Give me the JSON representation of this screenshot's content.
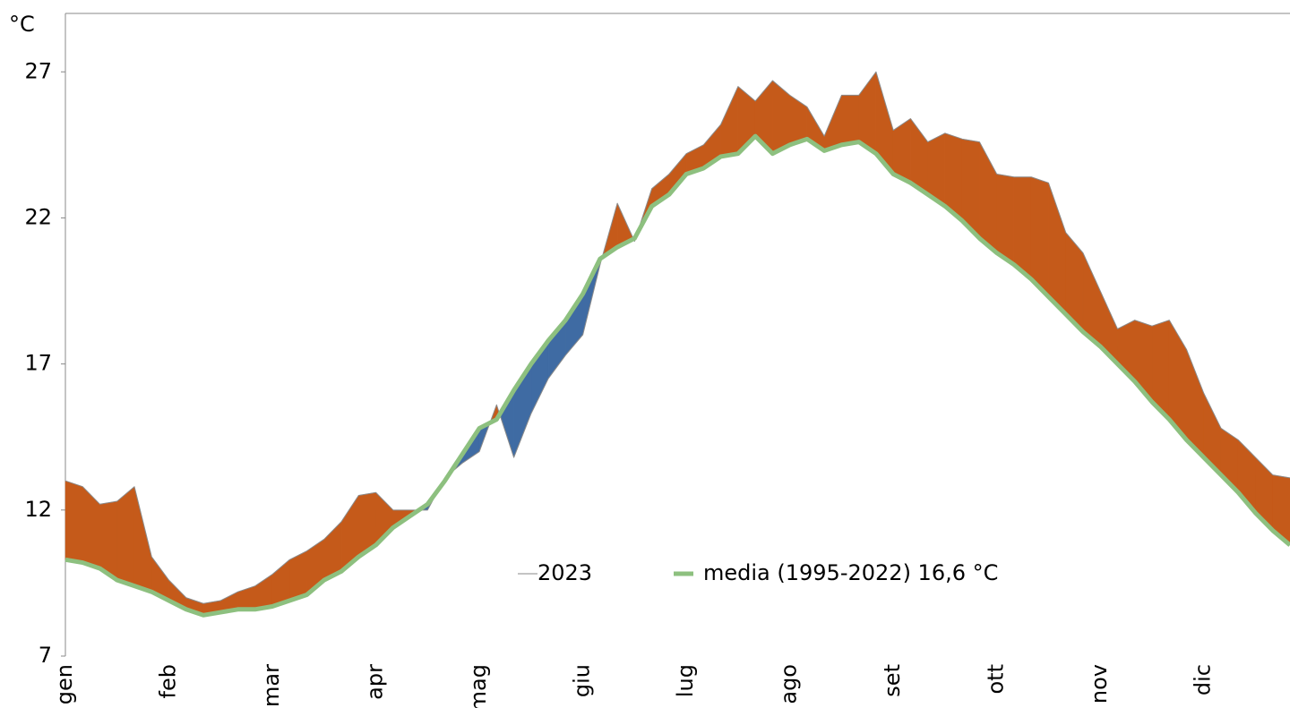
{
  "chart_data": {
    "type": "area-difference",
    "y_unit": "°C",
    "categories": [
      "gen",
      null,
      null,
      null,
      null,
      null,
      "feb",
      null,
      null,
      null,
      null,
      null,
      "mar",
      null,
      null,
      null,
      null,
      null,
      "apr",
      null,
      null,
      null,
      null,
      null,
      "mag",
      null,
      null,
      null,
      null,
      null,
      "giu",
      null,
      null,
      null,
      null,
      null,
      "lug",
      null,
      null,
      null,
      null,
      null,
      "ago",
      null,
      null,
      null,
      null,
      null,
      "set",
      null,
      null,
      null,
      null,
      null,
      "ott",
      null,
      null,
      null,
      null,
      null,
      "nov",
      null,
      null,
      null,
      null,
      null,
      "dic",
      null,
      null,
      null,
      null,
      null
    ],
    "series": [
      {
        "name": "2023",
        "color": "#8a8a8a",
        "fill_above": "#c55a1a",
        "fill_below": "#3f6ba3",
        "values": [
          13.0,
          12.8,
          12.2,
          12.3,
          12.8,
          10.4,
          9.6,
          9.0,
          8.8,
          8.9,
          9.2,
          9.4,
          9.8,
          10.3,
          10.6,
          11.0,
          11.6,
          12.5,
          12.6,
          12.0,
          12.0,
          12.0,
          13.1,
          13.6,
          14.0,
          15.6,
          13.8,
          15.3,
          16.5,
          17.3,
          18.0,
          20.4,
          22.5,
          21.2,
          23.0,
          23.5,
          24.2,
          24.5,
          25.2,
          26.5,
          26.0,
          26.7,
          26.2,
          25.8,
          24.8,
          26.2,
          26.2,
          27.0,
          25.0,
          25.4,
          24.6,
          24.9,
          24.7,
          24.6,
          23.5,
          23.4,
          23.4,
          23.2,
          21.5,
          20.8,
          19.5,
          18.2,
          18.5,
          18.3,
          18.5,
          17.5,
          16.0,
          14.8,
          14.4,
          13.8,
          13.2,
          13.1
        ]
      },
      {
        "name": "media (1995-2022) 16,6 °C",
        "color": "#8dc07f",
        "values": [
          10.3,
          10.2,
          10.0,
          9.6,
          9.4,
          9.2,
          8.9,
          8.6,
          8.4,
          8.5,
          8.6,
          8.6,
          8.7,
          8.9,
          9.1,
          9.6,
          9.9,
          10.4,
          10.8,
          11.4,
          11.8,
          12.2,
          13.0,
          13.9,
          14.8,
          15.1,
          16.1,
          17.0,
          17.8,
          18.5,
          19.4,
          20.6,
          21.0,
          21.3,
          22.4,
          22.8,
          23.5,
          23.7,
          24.1,
          24.2,
          24.8,
          24.2,
          24.5,
          24.7,
          24.3,
          24.5,
          24.6,
          24.2,
          23.5,
          23.2,
          22.8,
          22.4,
          21.9,
          21.3,
          20.8,
          20.4,
          19.9,
          19.3,
          18.7,
          18.1,
          17.6,
          17.0,
          16.4,
          15.7,
          15.1,
          14.4,
          13.8,
          13.2,
          12.6,
          11.9,
          11.3,
          10.8
        ]
      }
    ],
    "ylim": [
      7,
      29
    ],
    "yticks": [
      7,
      12,
      17,
      22,
      27
    ],
    "grid": false,
    "legend": "bottom-center"
  }
}
